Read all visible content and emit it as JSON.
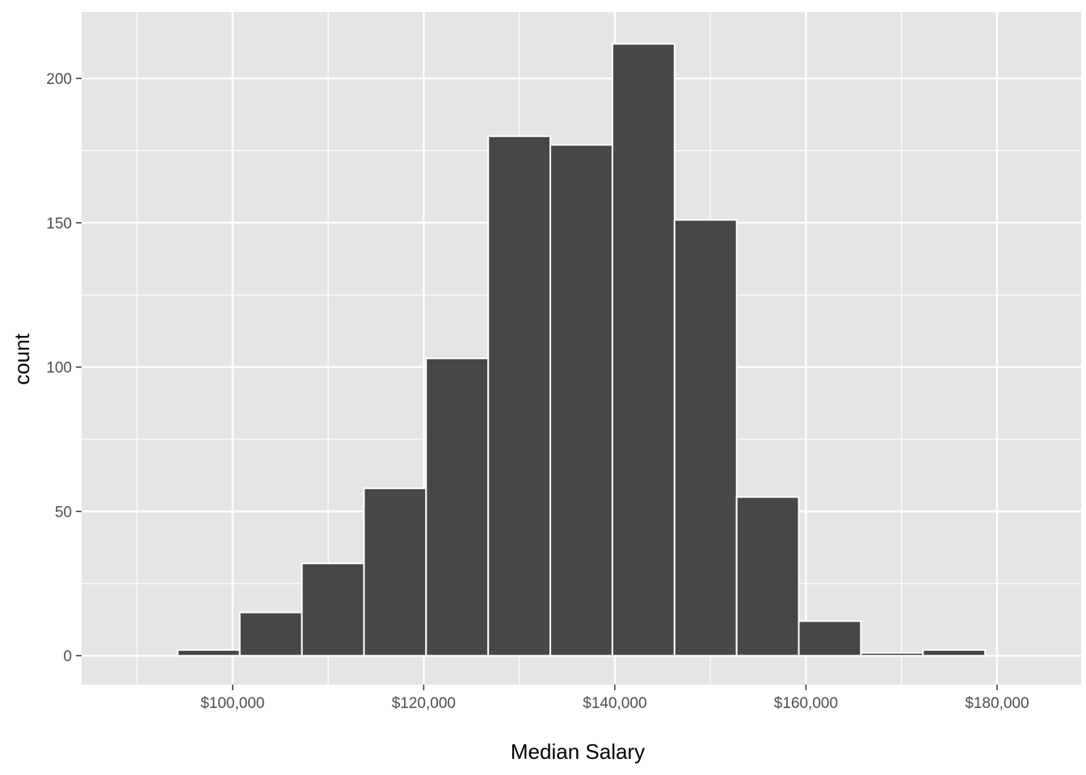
{
  "chart_data": {
    "type": "bar",
    "xlabel": "Median Salary",
    "ylabel": "count",
    "bin_width": 6500,
    "bins": [
      {
        "x_start": 94250,
        "x_end": 100750,
        "count": 2
      },
      {
        "x_start": 100750,
        "x_end": 107250,
        "count": 15
      },
      {
        "x_start": 107250,
        "x_end": 113750,
        "count": 32
      },
      {
        "x_start": 113750,
        "x_end": 120250,
        "count": 58
      },
      {
        "x_start": 120250,
        "x_end": 126750,
        "count": 103
      },
      {
        "x_start": 126750,
        "x_end": 133250,
        "count": 180
      },
      {
        "x_start": 133250,
        "x_end": 139750,
        "count": 177
      },
      {
        "x_start": 139750,
        "x_end": 146250,
        "count": 212
      },
      {
        "x_start": 146250,
        "x_end": 152750,
        "count": 151
      },
      {
        "x_start": 152750,
        "x_end": 159250,
        "count": 55
      },
      {
        "x_start": 159250,
        "x_end": 165750,
        "count": 12
      },
      {
        "x_start": 165750,
        "x_end": 172250,
        "count": 1
      },
      {
        "x_start": 172250,
        "x_end": 178750,
        "count": 2
      }
    ],
    "xlim": [
      84200,
      188800
    ],
    "ylim": [
      -10,
      223
    ],
    "x_ticks": [
      {
        "value": 100000,
        "label": "$100,000"
      },
      {
        "value": 120000,
        "label": "$120,000"
      },
      {
        "value": 140000,
        "label": "$140,000"
      },
      {
        "value": 160000,
        "label": "$160,000"
      },
      {
        "value": 180000,
        "label": "$180,000"
      }
    ],
    "x_minor_ticks": [
      90000,
      110000,
      130000,
      150000,
      170000
    ],
    "y_ticks": [
      {
        "value": 0,
        "label": "0"
      },
      {
        "value": 50,
        "label": "50"
      },
      {
        "value": 100,
        "label": "100"
      },
      {
        "value": 150,
        "label": "150"
      },
      {
        "value": 200,
        "label": "200"
      }
    ],
    "y_minor_ticks": [
      25,
      75,
      125,
      175
    ],
    "grid": true,
    "colors": {
      "panel": "#e5e5e5",
      "grid": "#ffffff",
      "bar_fill": "#474747",
      "bar_outline": "#ffffff",
      "tick_text": "#4d4d4d",
      "title_text": "#000000"
    }
  }
}
